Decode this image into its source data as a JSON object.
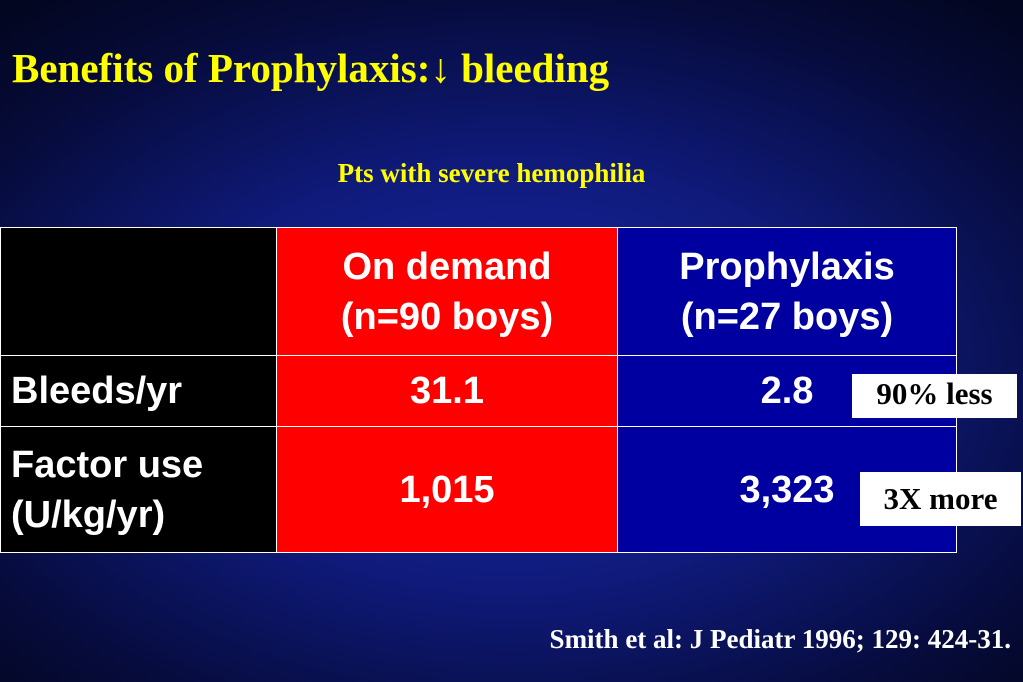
{
  "slide": {
    "title": "Benefits of Prophylaxis:↓ bleeding",
    "subtitle": "Pts with severe hemophilia",
    "citation": "Smith et al: J Pediatr 1996; 129: 424-31."
  },
  "table": {
    "headers": {
      "on_demand": {
        "line1": "On demand",
        "line2": "(n=90 boys)"
      },
      "prophylaxis": {
        "line1": "Prophylaxis",
        "line2": "(n=27 boys)"
      }
    },
    "rows": [
      {
        "label_line1": "Bleeds/yr",
        "on_demand": "31.1",
        "prophylaxis": "2.8"
      },
      {
        "label_line1": "Factor use",
        "label_line2": "(U/kg/yr)",
        "on_demand": "1,015",
        "prophylaxis": "3,323"
      }
    ]
  },
  "annotations": {
    "bleeds": "90% less",
    "factor": "3X more"
  },
  "colors": {
    "title": "#ffff00",
    "on_demand_fill": "#ff0000",
    "prophylaxis_fill": "#0000a0",
    "label_fill": "#000000",
    "background": "#0f1a7a"
  }
}
